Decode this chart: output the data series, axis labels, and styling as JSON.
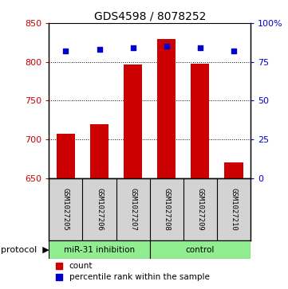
{
  "title": "GDS4598 / 8078252",
  "samples": [
    "GSM1027205",
    "GSM1027206",
    "GSM1027207",
    "GSM1027208",
    "GSM1027209",
    "GSM1027210"
  ],
  "counts": [
    707,
    720,
    797,
    830,
    798,
    670
  ],
  "percentiles": [
    82,
    83,
    84,
    85,
    84,
    82
  ],
  "ylim_left": [
    650,
    850
  ],
  "yticks_left": [
    650,
    700,
    750,
    800,
    850
  ],
  "ylim_right": [
    0,
    100
  ],
  "yticks_right": [
    0,
    25,
    50,
    75,
    100
  ],
  "ytick_labels_right": [
    "0",
    "25",
    "50",
    "75",
    "100%"
  ],
  "bar_color": "#cc0000",
  "dot_color": "#0000cc",
  "bar_width": 0.55,
  "protocol_groups": [
    {
      "label": "miR-31 inhibition",
      "indices": [
        0,
        1,
        2
      ],
      "color": "#90ee90"
    },
    {
      "label": "control",
      "indices": [
        3,
        4,
        5
      ],
      "color": "#90ee90"
    }
  ],
  "protocol_label": "protocol",
  "background_color": "#ffffff",
  "sample_box_color": "#d3d3d3",
  "left_axis_color": "#cc0000",
  "right_axis_color": "#0000cc"
}
